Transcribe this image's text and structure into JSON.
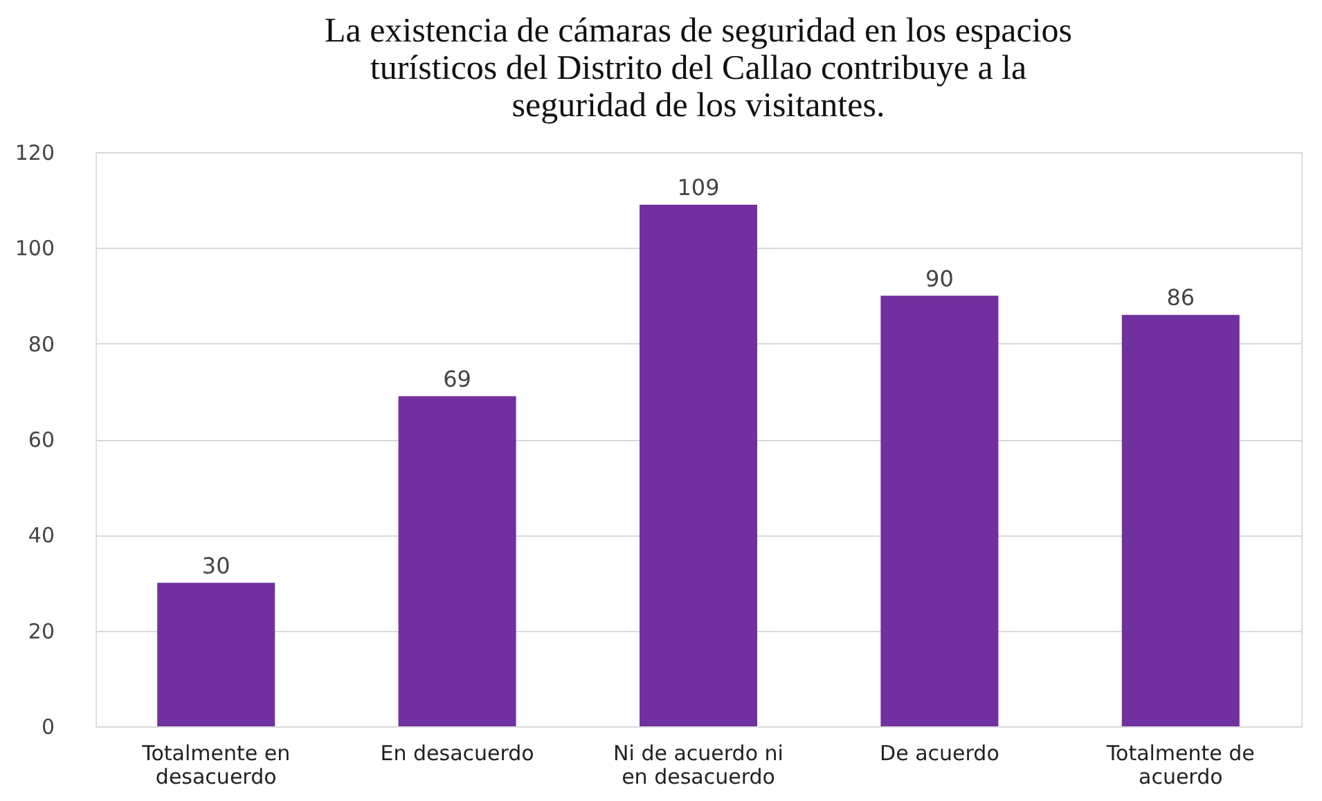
{
  "chart_data": {
    "type": "bar",
    "title": "La existencia de cámaras de seguridad en los espacios turísticos del Distrito del Callao contribuye a la seguridad de los visitantes.",
    "categories": [
      "Totalmente en desacuerdo",
      "En desacuerdo",
      "Ni de acuerdo ni en desacuerdo",
      "De acuerdo",
      "Totalmente de acuerdo"
    ],
    "values": [
      30,
      69,
      109,
      90,
      86
    ],
    "color": "#7030a0",
    "ylim": [
      0,
      120
    ],
    "yticks": [
      0,
      20,
      40,
      60,
      80,
      100,
      120
    ],
    "grid": "y",
    "data_labels": true
  }
}
